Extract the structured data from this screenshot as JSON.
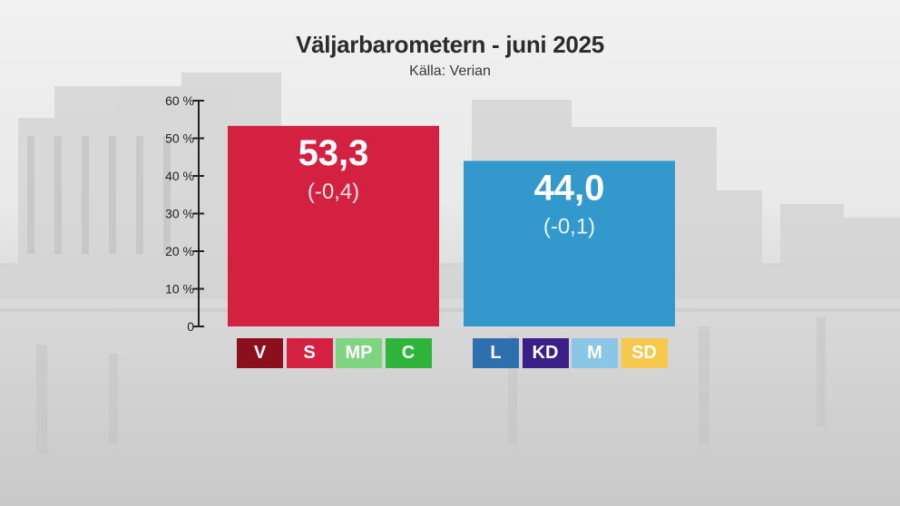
{
  "chart_data": {
    "type": "bar",
    "title": "Väljarbarometern - juni 2025",
    "subtitle": "Källa: Verian",
    "ylim": [
      0,
      60
    ],
    "y_ticks": [
      0,
      10,
      20,
      30,
      40,
      50,
      60
    ],
    "y_tick_labels": [
      "0",
      "10 %",
      "20 %",
      "30 %",
      "40 %",
      "50 %",
      "60 %"
    ],
    "grid": false,
    "bars": [
      {
        "value": 53.3,
        "value_label": "53,3",
        "change_label": "(-0,4)",
        "color": "#d42142",
        "parties": [
          {
            "label": "V",
            "color": "#8c0f1e"
          },
          {
            "label": "S",
            "color": "#d42142"
          },
          {
            "label": "MP",
            "color": "#7fd47f"
          },
          {
            "label": "C",
            "color": "#2fb53b"
          }
        ]
      },
      {
        "value": 44.0,
        "value_label": "44,0",
        "change_label": "(-0,1)",
        "color": "#3399cc",
        "parties": [
          {
            "label": "L",
            "color": "#2e6fae"
          },
          {
            "label": "KD",
            "color": "#3a1f86"
          },
          {
            "label": "M",
            "color": "#8ac7e6"
          },
          {
            "label": "SD",
            "color": "#f6c94c"
          }
        ]
      }
    ]
  }
}
